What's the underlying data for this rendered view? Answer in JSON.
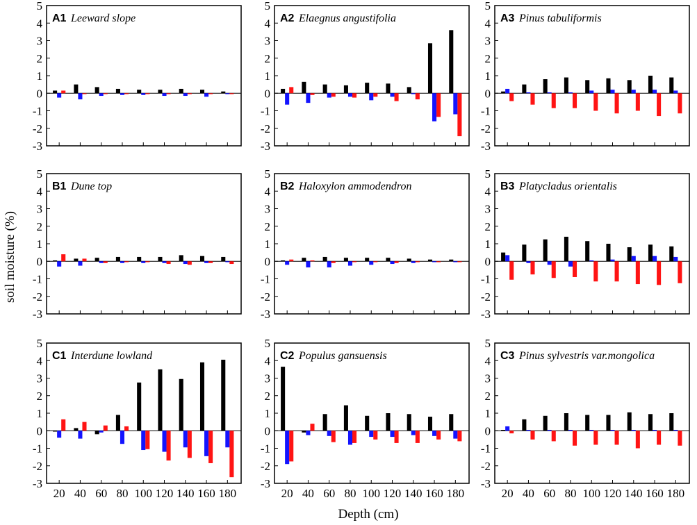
{
  "colors": {
    "series1": "#000000",
    "series2": "#1414ff",
    "series3": "#ff1414"
  },
  "figure": {
    "ylabel": "soil moisture (%)",
    "xlabel": "Depth (cm)"
  },
  "chart_data": [
    {
      "id": "A1",
      "panel_label": "A1",
      "title": "Leeward slope",
      "type": "bar",
      "categories": [
        20,
        40,
        60,
        80,
        100,
        120,
        140,
        160,
        180
      ],
      "ylim": [
        -3,
        5
      ],
      "yticks": [
        -3,
        -2,
        -1,
        0,
        1,
        2,
        3,
        4,
        5
      ],
      "series": [
        {
          "name": "black",
          "values": [
            0.15,
            0.5,
            0.35,
            0.25,
            0.2,
            0.2,
            0.25,
            0.2,
            0.1
          ]
        },
        {
          "name": "blue",
          "values": [
            -0.25,
            -0.35,
            -0.15,
            -0.1,
            -0.1,
            -0.15,
            -0.15,
            -0.2,
            -0.05
          ]
        },
        {
          "name": "red",
          "values": [
            0.15,
            -0.05,
            -0.05,
            -0.05,
            -0.05,
            -0.05,
            -0.05,
            -0.05,
            -0.05
          ]
        }
      ]
    },
    {
      "id": "A2",
      "panel_label": "A2",
      "title": "Elaegnus angustifolia",
      "type": "bar",
      "categories": [
        20,
        40,
        60,
        80,
        100,
        120,
        140,
        160,
        180
      ],
      "ylim": [
        -3,
        5
      ],
      "yticks": [
        -3,
        -2,
        -1,
        0,
        1,
        2,
        3,
        4,
        5
      ],
      "series": [
        {
          "name": "black",
          "values": [
            0.25,
            0.65,
            0.5,
            0.45,
            0.6,
            0.55,
            0.35,
            2.85,
            3.6
          ]
        },
        {
          "name": "blue",
          "values": [
            -0.65,
            -0.55,
            -0.25,
            -0.2,
            -0.4,
            -0.2,
            -0.05,
            -1.6,
            -1.2
          ]
        },
        {
          "name": "red",
          "values": [
            0.35,
            -0.1,
            -0.2,
            -0.25,
            -0.2,
            -0.45,
            -0.35,
            -1.35,
            -2.45
          ]
        }
      ]
    },
    {
      "id": "A3",
      "panel_label": "A3",
      "title": "Pinus tabuliformis",
      "type": "bar",
      "categories": [
        20,
        40,
        60,
        80,
        100,
        120,
        140,
        160,
        180
      ],
      "ylim": [
        -3,
        5
      ],
      "yticks": [
        -3,
        -2,
        -1,
        0,
        1,
        2,
        3,
        4,
        5
      ],
      "series": [
        {
          "name": "black",
          "values": [
            0.1,
            0.5,
            0.8,
            0.9,
            0.75,
            0.85,
            0.75,
            1.0,
            0.9
          ]
        },
        {
          "name": "blue",
          "values": [
            0.25,
            0.05,
            0.05,
            0.05,
            0.15,
            0.2,
            0.2,
            0.2,
            0.15
          ]
        },
        {
          "name": "red",
          "values": [
            -0.45,
            -0.65,
            -0.85,
            -0.85,
            -1.0,
            -1.15,
            -1.0,
            -1.3,
            -1.15
          ]
        }
      ]
    },
    {
      "id": "B1",
      "panel_label": "B1",
      "title": "Dune top",
      "type": "bar",
      "categories": [
        20,
        40,
        60,
        80,
        100,
        120,
        140,
        160,
        180
      ],
      "ylim": [
        -3,
        5
      ],
      "yticks": [
        -3,
        -2,
        -1,
        0,
        1,
        2,
        3,
        4,
        5
      ],
      "series": [
        {
          "name": "black",
          "values": [
            0.05,
            0.15,
            0.2,
            0.25,
            0.25,
            0.25,
            0.35,
            0.3,
            0.25
          ]
        },
        {
          "name": "blue",
          "values": [
            -0.3,
            -0.25,
            -0.1,
            -0.1,
            -0.1,
            -0.1,
            -0.15,
            -0.1,
            -0.05
          ]
        },
        {
          "name": "red",
          "values": [
            0.4,
            0.15,
            -0.1,
            -0.05,
            -0.05,
            -0.15,
            -0.2,
            -0.1,
            -0.15
          ]
        }
      ]
    },
    {
      "id": "B2",
      "panel_label": "B2",
      "title": "Haloxylon ammodendron",
      "type": "bar",
      "categories": [
        20,
        40,
        60,
        80,
        100,
        120,
        140,
        160,
        180
      ],
      "ylim": [
        -3,
        5
      ],
      "yticks": [
        -3,
        -2,
        -1,
        0,
        1,
        2,
        3,
        4,
        5
      ],
      "series": [
        {
          "name": "black",
          "values": [
            0.05,
            0.2,
            0.25,
            0.2,
            0.2,
            0.2,
            0.15,
            0.1,
            0.1
          ]
        },
        {
          "name": "blue",
          "values": [
            -0.2,
            -0.35,
            -0.35,
            -0.25,
            -0.2,
            -0.15,
            -0.1,
            -0.05,
            -0.05
          ]
        },
        {
          "name": "red",
          "values": [
            0.1,
            0.05,
            -0.1,
            -0.05,
            -0.05,
            -0.1,
            -0.05,
            -0.05,
            -0.05
          ]
        }
      ]
    },
    {
      "id": "B3",
      "panel_label": "B3",
      "title": "Platycladus orientalis",
      "type": "bar",
      "categories": [
        20,
        40,
        60,
        80,
        100,
        120,
        140,
        160,
        180
      ],
      "ylim": [
        -3,
        5
      ],
      "yticks": [
        -3,
        -2,
        -1,
        0,
        1,
        2,
        3,
        4,
        5
      ],
      "series": [
        {
          "name": "black",
          "values": [
            0.5,
            0.95,
            1.25,
            1.4,
            1.15,
            1.0,
            0.8,
            0.95,
            0.85
          ]
        },
        {
          "name": "blue",
          "values": [
            0.35,
            -0.1,
            -0.2,
            -0.3,
            0.05,
            0.1,
            0.3,
            0.3,
            0.25
          ]
        },
        {
          "name": "red",
          "values": [
            -1.05,
            -0.75,
            -0.95,
            -0.9,
            -1.15,
            -1.15,
            -1.3,
            -1.35,
            -1.25
          ]
        }
      ]
    },
    {
      "id": "C1",
      "panel_label": "C1",
      "title": "Interdune lowland",
      "type": "bar",
      "categories": [
        20,
        40,
        60,
        80,
        100,
        120,
        140,
        160,
        180
      ],
      "ylim": [
        -3,
        5
      ],
      "yticks": [
        -3,
        -2,
        -1,
        0,
        1,
        2,
        3,
        4,
        5
      ],
      "series": [
        {
          "name": "black",
          "values": [
            -0.05,
            0.15,
            -0.2,
            0.9,
            2.75,
            3.5,
            2.95,
            3.9,
            4.05
          ]
        },
        {
          "name": "blue",
          "values": [
            -0.4,
            -0.45,
            -0.1,
            -0.75,
            -1.1,
            -1.2,
            -0.95,
            -1.45,
            -0.95
          ]
        },
        {
          "name": "red",
          "values": [
            0.65,
            0.5,
            0.3,
            0.25,
            -1.05,
            -1.7,
            -1.55,
            -1.85,
            -2.65
          ]
        }
      ]
    },
    {
      "id": "C2",
      "panel_label": "C2",
      "title": "Populus gansuensis",
      "type": "bar",
      "categories": [
        20,
        40,
        60,
        80,
        100,
        120,
        140,
        160,
        180
      ],
      "ylim": [
        -3,
        5
      ],
      "yticks": [
        -3,
        -2,
        -1,
        0,
        1,
        2,
        3,
        4,
        5
      ],
      "series": [
        {
          "name": "black",
          "values": [
            3.65,
            -0.1,
            0.95,
            1.45,
            0.85,
            1.0,
            0.95,
            0.8,
            0.95
          ]
        },
        {
          "name": "blue",
          "values": [
            -1.9,
            -0.25,
            -0.3,
            -0.8,
            -0.35,
            -0.35,
            -0.25,
            -0.3,
            -0.45
          ]
        },
        {
          "name": "red",
          "values": [
            -1.75,
            0.4,
            -0.65,
            -0.7,
            -0.5,
            -0.7,
            -0.7,
            -0.5,
            -0.6
          ]
        }
      ]
    },
    {
      "id": "C3",
      "panel_label": "C3",
      "title": "Pinus sylvestris var.mongolica",
      "type": "bar",
      "categories": [
        20,
        40,
        60,
        80,
        100,
        120,
        140,
        160,
        180
      ],
      "ylim": [
        -3,
        5
      ],
      "yticks": [
        -3,
        -2,
        -1,
        0,
        1,
        2,
        3,
        4,
        5
      ],
      "series": [
        {
          "name": "black",
          "values": [
            0.05,
            0.65,
            0.85,
            1.0,
            0.9,
            0.9,
            1.05,
            0.95,
            1.0
          ]
        },
        {
          "name": "blue",
          "values": [
            0.25,
            0.05,
            0.05,
            0.05,
            0.05,
            0.05,
            0.05,
            0.05,
            0.05
          ]
        },
        {
          "name": "red",
          "values": [
            -0.15,
            -0.5,
            -0.6,
            -0.85,
            -0.8,
            -0.8,
            -1.0,
            -0.8,
            -0.85
          ]
        }
      ]
    }
  ]
}
